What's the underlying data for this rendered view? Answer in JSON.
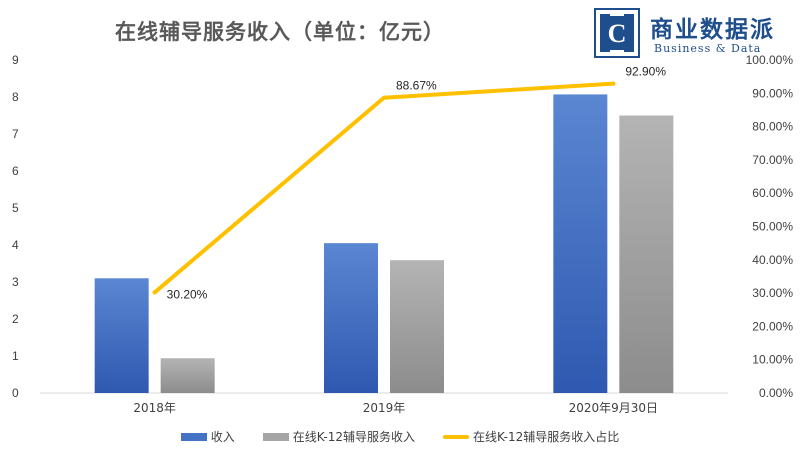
{
  "title": "在线辅导服务收入（单位：亿元）",
  "logo": {
    "letter": "C",
    "name": "商业数据派",
    "tagline": "Business & Data"
  },
  "colors": {
    "revenue": "#4472c4",
    "k12": "#a5a5a5",
    "share": "#ffc000"
  },
  "chart_data": {
    "type": "bar",
    "categories": [
      "2018年",
      "2019年",
      "2020年9月30日"
    ],
    "series": [
      {
        "name": "收入",
        "type": "bar",
        "axis": "left",
        "values": [
          3.1,
          4.05,
          8.07
        ]
      },
      {
        "name": "在线K-12辅导服务收入",
        "type": "bar",
        "axis": "left",
        "values": [
          0.94,
          3.59,
          7.5
        ]
      },
      {
        "name": "在线K-12辅导服务收入占比",
        "type": "line",
        "axis": "right",
        "values": [
          30.2,
          88.67,
          92.9
        ],
        "labels": [
          "30.20%",
          "88.67%",
          "92.90%"
        ]
      }
    ],
    "ylim_left": [
      0,
      9
    ],
    "left_ticks": [
      "0",
      "1",
      "2",
      "3",
      "4",
      "5",
      "6",
      "7",
      "8",
      "9"
    ],
    "ylim_right": [
      0,
      100
    ],
    "right_ticks": [
      "0.00%",
      "10.00%",
      "20.00%",
      "30.00%",
      "40.00%",
      "50.00%",
      "60.00%",
      "70.00%",
      "80.00%",
      "90.00%",
      "100.00%"
    ],
    "grid": false,
    "legend_position": "bottom"
  }
}
